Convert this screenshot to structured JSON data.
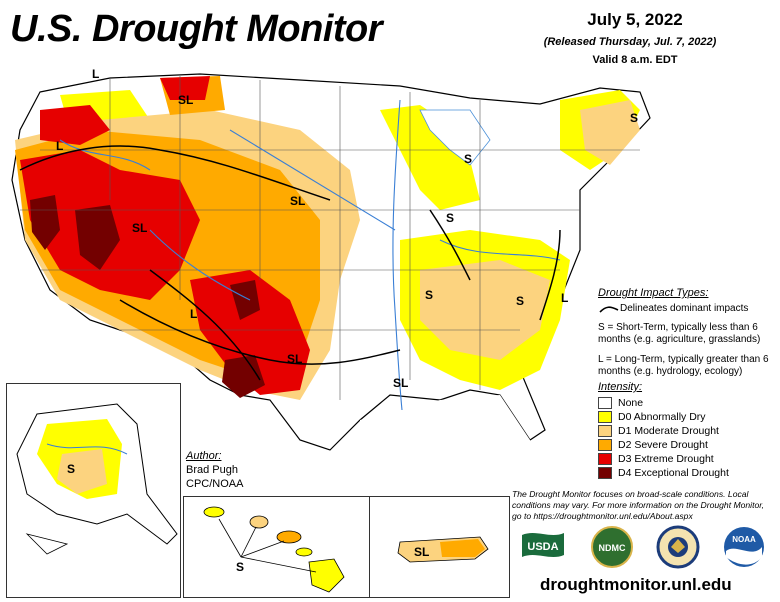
{
  "header": {
    "title": "U.S. Drought Monitor",
    "date": "July 5, 2022",
    "released": "(Released Thursday, Jul. 7, 2022)",
    "valid": "Valid 8 a.m. EDT"
  },
  "impact_legend": {
    "title": "Drought Impact Types:",
    "delineates": "Delineates dominant impacts",
    "short_term": "S = Short-Term, typically less than 6 months (e.g. agriculture, grasslands)",
    "long_term": "L = Long-Term, typically greater than 6 months (e.g. hydrology, ecology)"
  },
  "intensity_legend": {
    "title": "Intensity:",
    "items": [
      {
        "label": "None",
        "color": "#ffffff"
      },
      {
        "label": "D0 Abnormally Dry",
        "color": "#ffff00"
      },
      {
        "label": "D1 Moderate Drought",
        "color": "#fcd37f"
      },
      {
        "label": "D2 Severe Drought",
        "color": "#ffaa00"
      },
      {
        "label": "D3 Extreme Drought",
        "color": "#e60000"
      },
      {
        "label": "D4 Exceptional Drought",
        "color": "#730000"
      }
    ]
  },
  "author": {
    "label": "Author:",
    "name": "Brad Pugh",
    "org": "CPC/NOAA"
  },
  "disclaimer": "The Drought Monitor focuses on broad-scale conditions. Local conditions may vary. For more information on the Drought Monitor, go to https://droughtmonitor.unl.edu/About.aspx",
  "website": "droughtmonitor.unl.edu",
  "map_labels": {
    "sl_montana": "SL",
    "l_washington": "L",
    "l_oregon": "L",
    "sl_utah": "SL",
    "sl_nebraska": "SL",
    "l_newmexico": "L",
    "sl_texas": "SL",
    "s_michigan": "S",
    "s_illinois": "S",
    "s_tennessee": "S",
    "s_georgia": "S",
    "l_carolina": "L",
    "sl_louisiana": "SL",
    "s_maine": "S",
    "s_alaska": "S",
    "s_hawaii": "S",
    "sl_puertorico": "SL"
  },
  "logos": {
    "usda": "USDA",
    "ndmc": "NDMC",
    "noaa": "NOAA"
  }
}
